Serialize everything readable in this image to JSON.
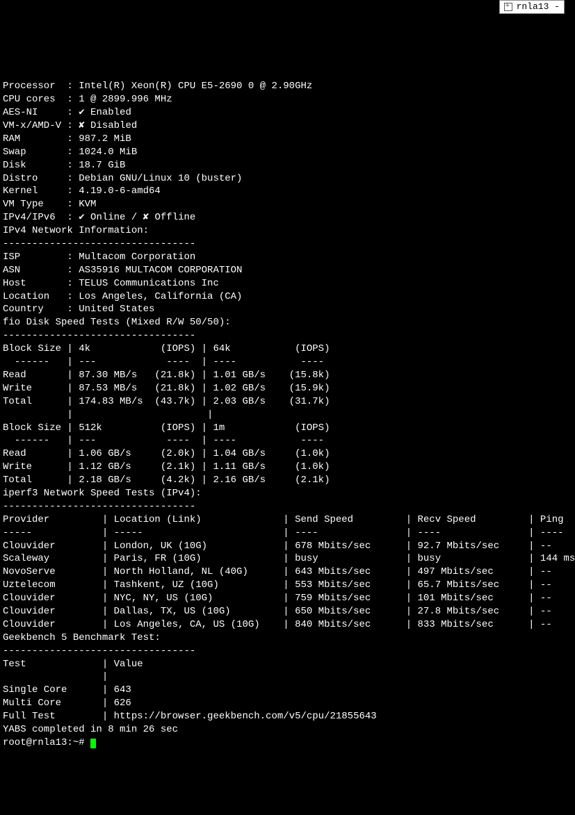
{
  "tab": {
    "label": "rnla13 -"
  },
  "sysinfo": [
    {
      "k": "Processor",
      "v": "Intel(R) Xeon(R) CPU E5-2690 0 @ 2.90GHz"
    },
    {
      "k": "CPU cores",
      "v": "1 @ 2899.996 MHz"
    },
    {
      "k": "AES-NI",
      "v": "✔ Enabled"
    },
    {
      "k": "VM-x/AMD-V",
      "v": "✘ Disabled"
    },
    {
      "k": "RAM",
      "v": "987.2 MiB"
    },
    {
      "k": "Swap",
      "v": "1024.0 MiB"
    },
    {
      "k": "Disk",
      "v": "18.7 GiB"
    },
    {
      "k": "Distro",
      "v": "Debian GNU/Linux 10 (buster)"
    },
    {
      "k": "Kernel",
      "v": "4.19.0-6-amd64"
    },
    {
      "k": "VM Type",
      "v": "KVM"
    },
    {
      "k": "IPv4/IPv6",
      "v": "✔ Online / ✘ Offline"
    }
  ],
  "net_header": "IPv4 Network Information:",
  "dashes29": "---------------------------------",
  "netinfo": [
    {
      "k": "ISP",
      "v": "Multacom Corporation"
    },
    {
      "k": "ASN",
      "v": "AS35916 MULTACOM CORPORATION"
    },
    {
      "k": "Host",
      "v": "TELUS Communications Inc"
    },
    {
      "k": "Location",
      "v": "Los Angeles, California (CA)"
    },
    {
      "k": "Country",
      "v": "United States"
    }
  ],
  "fio_header": "fio Disk Speed Tests (Mixed R/W 50/50):",
  "fio1": {
    "hdr": {
      "c1": "Block Size",
      "c2": "4k",
      "c3": "(IOPS)",
      "c4": "64k",
      "c5": "(IOPS)"
    },
    "sep": {
      "c1": "  ------",
      "c2": "---",
      "c3": "---- ",
      "c4": "----",
      "c5": "---- "
    },
    "rows": [
      {
        "c1": "Read",
        "c2": "87.30 MB/s",
        "c3": "(21.8k)",
        "c4": "1.01 GB/s",
        "c5": "(15.8k)"
      },
      {
        "c1": "Write",
        "c2": "87.53 MB/s",
        "c3": "(21.8k)",
        "c4": "1.02 GB/s",
        "c5": "(15.9k)"
      },
      {
        "c1": "Total",
        "c2": "174.83 MB/s",
        "c3": "(43.7k)",
        "c4": "2.03 GB/s",
        "c5": "(31.7k)"
      }
    ]
  },
  "fio2": {
    "hdr": {
      "c1": "Block Size",
      "c2": "512k",
      "c3": "(IOPS)",
      "c4": "1m",
      "c5": "(IOPS)"
    },
    "sep": {
      "c1": "  ------",
      "c2": "---",
      "c3": "---- ",
      "c4": "----",
      "c5": "---- "
    },
    "rows": [
      {
        "c1": "Read",
        "c2": "1.06 GB/s",
        "c3": "(2.0k)",
        "c4": "1.04 GB/s",
        "c5": "(1.0k)"
      },
      {
        "c1": "Write",
        "c2": "1.12 GB/s",
        "c3": "(2.1k)",
        "c4": "1.11 GB/s",
        "c5": "(1.0k)"
      },
      {
        "c1": "Total",
        "c2": "2.18 GB/s",
        "c3": "(4.2k)",
        "c4": "2.16 GB/s",
        "c5": "(2.1k)"
      }
    ]
  },
  "iperf_header": "iperf3 Network Speed Tests (IPv4):",
  "iperf": {
    "hdr": {
      "p": "Provider",
      "l": "Location (Link)",
      "s": "Send Speed",
      "r": "Recv Speed",
      "g": "Ping"
    },
    "sep": {
      "p": "-----",
      "l": "-----",
      "s": "----",
      "r": "----",
      "g": "----"
    },
    "rows": [
      {
        "p": "Clouvider",
        "l": "London, UK (10G)",
        "s": "678 Mbits/sec",
        "r": "92.7 Mbits/sec",
        "g": "--"
      },
      {
        "p": "Scaleway",
        "l": "Paris, FR (10G)",
        "s": "busy",
        "r": "busy",
        "g": "144 ms"
      },
      {
        "p": "NovoServe",
        "l": "North Holland, NL (40G)",
        "s": "643 Mbits/sec",
        "r": "497 Mbits/sec",
        "g": "--"
      },
      {
        "p": "Uztelecom",
        "l": "Tashkent, UZ (10G)",
        "s": "553 Mbits/sec",
        "r": "65.7 Mbits/sec",
        "g": "--"
      },
      {
        "p": "Clouvider",
        "l": "NYC, NY, US (10G)",
        "s": "759 Mbits/sec",
        "r": "101 Mbits/sec",
        "g": "--"
      },
      {
        "p": "Clouvider",
        "l": "Dallas, TX, US (10G)",
        "s": "650 Mbits/sec",
        "r": "27.8 Mbits/sec",
        "g": "--"
      },
      {
        "p": "Clouvider",
        "l": "Los Angeles, CA, US (10G)",
        "s": "840 Mbits/sec",
        "r": "833 Mbits/sec",
        "g": "--"
      }
    ]
  },
  "gb_header": "Geekbench 5 Benchmark Test:",
  "gb": {
    "hdr": {
      "t": "Test",
      "v": "Value"
    },
    "rows": [
      {
        "t": "Single Core",
        "v": "643"
      },
      {
        "t": "Multi Core",
        "v": "626"
      },
      {
        "t": "Full Test",
        "v": "https://browser.geekbench.com/v5/cpu/21855643"
      }
    ]
  },
  "yabs": "YABS completed in 8 min 26 sec",
  "prompt": "root@rnla13:~# "
}
